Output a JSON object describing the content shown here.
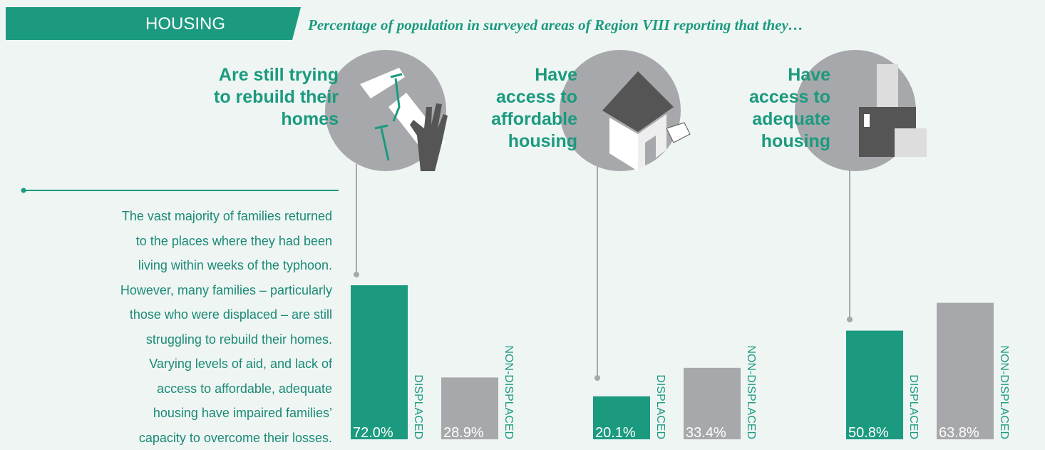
{
  "header": {
    "label": "HOUSING",
    "subtitle": "Percentage of population in surveyed areas of Region VIII reporting that they…"
  },
  "paragraph": "The vast majority of families returned\nto the places where they had been\nliving within weeks of the typhoon.\nHowever, many families – particularly\nthose who were displaced – are still\nstruggling to rebuild their homes.\nVarying levels of aid, and lack of\naccess to affordable, adequate\nhousing have impaired families’\ncapacity to overcome their losses.",
  "chart_data": [
    {
      "type": "bar",
      "title": "Are still trying\nto rebuild their\nhomes",
      "categories": [
        "DISPLACED",
        "NON-DISPLACED"
      ],
      "values": [
        72.0,
        28.9
      ],
      "value_labels": [
        "72.0%",
        "28.9%"
      ],
      "colors": [
        "#1b9a7f",
        "#a7a8ab"
      ]
    },
    {
      "type": "bar",
      "title": "Have\naccess to\naffordable\nhousing",
      "categories": [
        "DISPLACED",
        "NON-DISPLACED"
      ],
      "values": [
        20.1,
        33.4
      ],
      "value_labels": [
        "20.1%",
        "33.4%"
      ],
      "colors": [
        "#1b9a7f",
        "#a7a8ab"
      ]
    },
    {
      "type": "bar",
      "title": "Have\naccess to\nadequate\nhousing",
      "categories": [
        "DISPLACED",
        "NON-DISPLACED"
      ],
      "values": [
        50.8,
        63.8
      ],
      "value_labels": [
        "50.8%",
        "63.8%"
      ],
      "colors": [
        "#1b9a7f",
        "#a7a8ab"
      ]
    }
  ]
}
